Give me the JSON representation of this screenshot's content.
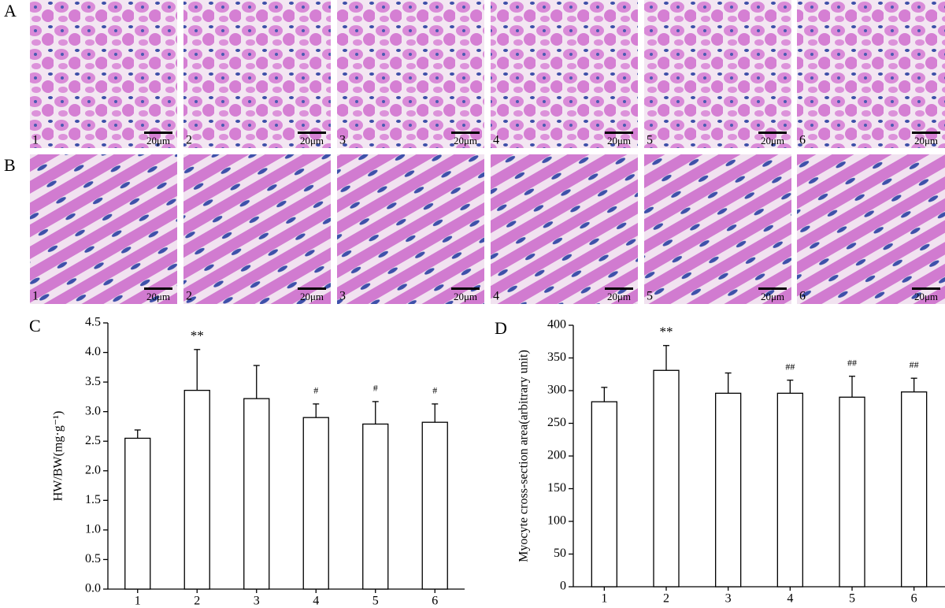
{
  "panels": [
    {
      "label": "A",
      "images": [
        "1",
        "2",
        "3",
        "4",
        "5",
        "6"
      ]
    },
    {
      "label": "B",
      "images": [
        "1",
        "2",
        "3",
        "4",
        "5",
        "6"
      ]
    }
  ],
  "scale_bar": "20μm",
  "chart_data": [
    {
      "type": "bar",
      "label": "C",
      "ylabel": "HW/BW(mg·g⁻¹)",
      "categories": [
        "1",
        "2",
        "3",
        "4",
        "5",
        "6"
      ],
      "values": [
        2.55,
        3.36,
        3.22,
        2.9,
        2.79,
        2.82
      ],
      "errors": [
        0.14,
        0.69,
        0.56,
        0.23,
        0.38,
        0.31
      ],
      "annotations": [
        null,
        "**",
        null,
        "#",
        "#",
        "#"
      ],
      "ylim": [
        0,
        4.5
      ],
      "yticks": [
        {
          "value": 0,
          "label": "0.0"
        },
        0.5,
        {
          "value": 1,
          "label": "1.0"
        },
        1.5,
        {
          "value": 2,
          "label": "2.0"
        },
        2.5,
        {
          "value": 3,
          "label": "3.0"
        },
        3.5,
        {
          "value": 4,
          "label": "4.0"
        },
        4.5
      ],
      "color": "#ffffff"
    },
    {
      "type": "bar",
      "label": "D",
      "ylabel": "Myocyte cross-section area(arbitrary unit)",
      "categories": [
        "1",
        "2",
        "3",
        "4",
        "5",
        "6"
      ],
      "values": [
        283,
        331,
        296,
        296,
        290,
        298
      ],
      "errors": [
        22,
        38,
        31,
        20,
        32,
        21
      ],
      "annotations": [
        null,
        "**",
        null,
        "##",
        "##",
        "##"
      ],
      "ylim": [
        0,
        400
      ],
      "yticks": [
        0,
        50,
        100,
        150,
        200,
        250,
        300,
        350,
        400
      ],
      "color": "#ffffff"
    }
  ]
}
